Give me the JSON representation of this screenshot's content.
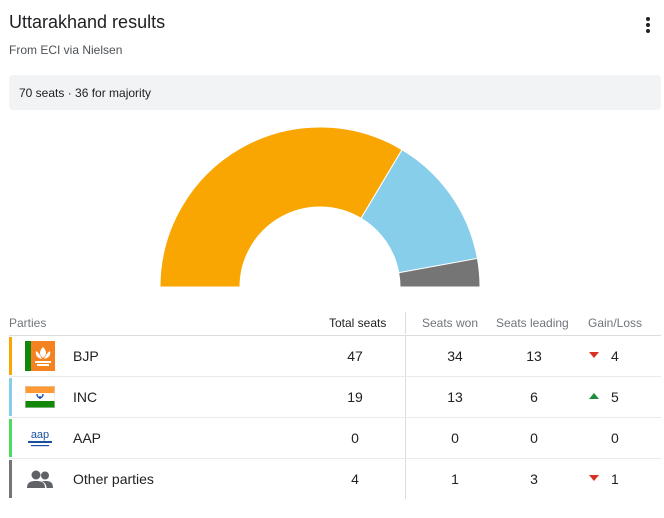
{
  "header": {
    "title": "Uttarakhand results",
    "source": "From ECI via Nielsen"
  },
  "info": {
    "text": "70 seats · 36 for majority"
  },
  "chart_data": {
    "type": "pie",
    "variant": "half-donut",
    "total": 70,
    "slices": [
      {
        "label": "BJP",
        "value": 47,
        "color": "#f9a602"
      },
      {
        "label": "INC",
        "value": 19,
        "color": "#87ceeb"
      },
      {
        "label": "Other parties",
        "value": 4,
        "color": "#757575"
      }
    ]
  },
  "table": {
    "headers": {
      "parties": "Parties",
      "total": "Total seats",
      "won": "Seats won",
      "leading": "Seats leading",
      "gainloss": "Gain/Loss"
    },
    "rows": [
      {
        "name": "BJP",
        "total": "47",
        "won": "34",
        "leading": "13",
        "change": "4",
        "direction": "down",
        "color": "#f9a602",
        "icon": "bjp-lotus-logo"
      },
      {
        "name": "INC",
        "total": "19",
        "won": "13",
        "leading": "6",
        "change": "5",
        "direction": "up",
        "color": "#87ceeb",
        "icon": "inc-flag-logo"
      },
      {
        "name": "AAP",
        "total": "0",
        "won": "0",
        "leading": "0",
        "change": "0",
        "direction": "none",
        "color": "#4cd964",
        "icon": "aap-logo"
      },
      {
        "name": "Other parties",
        "total": "4",
        "won": "1",
        "leading": "3",
        "change": "1",
        "direction": "down",
        "color": "#757575",
        "icon": "people-icon"
      }
    ]
  },
  "colors": {
    "down": "#d93025",
    "up": "#1e8e3e"
  }
}
